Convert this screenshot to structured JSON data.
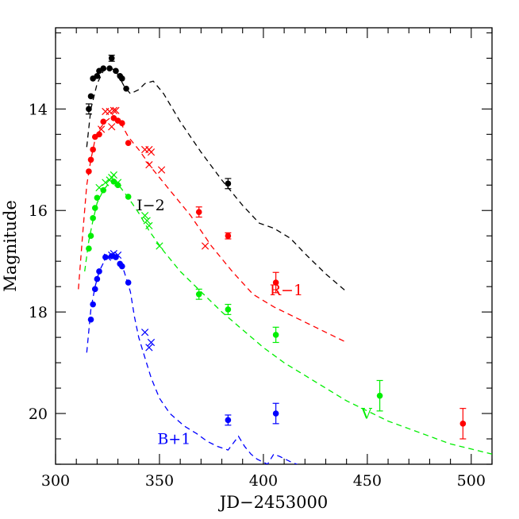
{
  "chart_data": {
    "type": "scatter",
    "title": "",
    "xlabel": "JD−2453000",
    "ylabel": "Magnitude",
    "xlim": [
      300,
      510
    ],
    "ylim": [
      21,
      12.4
    ],
    "y_inverted": true,
    "grid": false,
    "x_ticks": [
      300,
      350,
      400,
      450,
      500
    ],
    "y_ticks": [
      14,
      16,
      18,
      20
    ],
    "series": [
      {
        "name": "I−2",
        "color": "#000000",
        "label_pos": {
          "x": 339,
          "y": 16.0
        },
        "dots": [
          [
            316,
            14.0
          ],
          [
            317,
            13.75
          ],
          [
            318,
            13.4
          ],
          [
            320,
            13.35
          ],
          [
            321,
            13.25
          ],
          [
            323,
            13.2
          ],
          [
            326,
            13.2
          ],
          [
            327,
            13.0
          ],
          [
            329,
            13.25
          ],
          [
            331,
            13.35
          ],
          [
            332,
            13.4
          ],
          [
            334,
            13.6
          ],
          [
            383,
            15.47
          ]
        ],
        "dot_err": [
          [
            316,
            0.1
          ],
          [
            383,
            0.1
          ],
          [
            327,
            0.06
          ]
        ],
        "crosses": [],
        "model": [
          [
            315,
            14.75
          ],
          [
            317,
            14.0
          ],
          [
            320,
            13.5
          ],
          [
            323,
            13.25
          ],
          [
            326,
            13.18
          ],
          [
            329,
            13.25
          ],
          [
            333,
            13.55
          ],
          [
            336,
            13.7
          ],
          [
            340,
            13.62
          ],
          [
            343,
            13.5
          ],
          [
            347,
            13.45
          ],
          [
            352,
            13.7
          ],
          [
            360,
            14.25
          ],
          [
            370,
            14.85
          ],
          [
            380,
            15.4
          ],
          [
            390,
            15.9
          ],
          [
            398,
            16.25
          ],
          [
            405,
            16.35
          ],
          [
            413,
            16.55
          ],
          [
            420,
            16.85
          ],
          [
            430,
            17.25
          ],
          [
            440,
            17.6
          ]
        ]
      },
      {
        "name": "R−1",
        "color": "#ff0000",
        "label_pos": {
          "x": 403,
          "y": 17.67
        },
        "dots": [
          [
            316,
            15.23
          ],
          [
            317,
            15.0
          ],
          [
            318,
            14.8
          ],
          [
            319,
            14.55
          ],
          [
            321,
            14.5
          ],
          [
            323,
            14.25
          ],
          [
            328,
            14.18
          ],
          [
            330,
            14.23
          ],
          [
            332,
            14.28
          ],
          [
            335,
            14.67
          ],
          [
            369,
            16.03
          ],
          [
            383,
            16.5
          ],
          [
            406,
            17.42
          ],
          [
            496,
            20.2
          ]
        ],
        "dot_err": [
          [
            369,
            0.1
          ],
          [
            383,
            0.06
          ],
          [
            406,
            0.2
          ],
          [
            496,
            0.3
          ]
        ],
        "crosses": [
          [
            322,
            14.4
          ],
          [
            324,
            14.05
          ],
          [
            326,
            14.05
          ],
          [
            327,
            14.35
          ],
          [
            328,
            14.03
          ],
          [
            329,
            14.03
          ],
          [
            343,
            14.8
          ],
          [
            345,
            14.8
          ],
          [
            346,
            14.85
          ],
          [
            345,
            15.1
          ],
          [
            351,
            15.2
          ],
          [
            372,
            16.7
          ]
        ],
        "model": [
          [
            311,
            17.55
          ],
          [
            313,
            16.5
          ],
          [
            315,
            15.5
          ],
          [
            317,
            15.0
          ],
          [
            319,
            14.6
          ],
          [
            321,
            14.4
          ],
          [
            324,
            14.25
          ],
          [
            327,
            14.15
          ],
          [
            331,
            14.25
          ],
          [
            335,
            14.55
          ],
          [
            340,
            14.8
          ],
          [
            347,
            15.2
          ],
          [
            355,
            15.6
          ],
          [
            365,
            16.1
          ],
          [
            375,
            16.7
          ],
          [
            385,
            17.2
          ],
          [
            395,
            17.65
          ],
          [
            405,
            17.9
          ],
          [
            415,
            18.1
          ],
          [
            425,
            18.3
          ],
          [
            440,
            18.6
          ]
        ]
      },
      {
        "name": "V",
        "color": "#00ee00",
        "label_pos": {
          "x": 447,
          "y": 20.1
        },
        "dots": [
          [
            316,
            16.75
          ],
          [
            317,
            16.5
          ],
          [
            318,
            16.15
          ],
          [
            319,
            15.95
          ],
          [
            320,
            15.75
          ],
          [
            323,
            15.6
          ],
          [
            328,
            15.43
          ],
          [
            330,
            15.5
          ],
          [
            335,
            15.73
          ],
          [
            369,
            17.65
          ],
          [
            383,
            17.95
          ],
          [
            406,
            18.45
          ],
          [
            456,
            19.65
          ]
        ],
        "dot_err": [
          [
            369,
            0.1
          ],
          [
            383,
            0.1
          ],
          [
            406,
            0.15
          ],
          [
            456,
            0.3
          ]
        ],
        "crosses": [
          [
            321,
            15.55
          ],
          [
            324,
            15.45
          ],
          [
            326,
            15.4
          ],
          [
            327,
            15.35
          ],
          [
            328,
            15.3
          ],
          [
            330,
            15.45
          ],
          [
            343,
            16.1
          ],
          [
            344,
            16.2
          ],
          [
            345,
            16.3
          ],
          [
            350,
            16.7
          ]
        ],
        "model": [
          [
            314,
            17.2
          ],
          [
            316,
            16.6
          ],
          [
            318,
            16.2
          ],
          [
            320,
            15.85
          ],
          [
            323,
            15.6
          ],
          [
            326,
            15.45
          ],
          [
            330,
            15.48
          ],
          [
            335,
            15.75
          ],
          [
            340,
            16.05
          ],
          [
            345,
            16.4
          ],
          [
            352,
            16.8
          ],
          [
            360,
            17.2
          ],
          [
            370,
            17.6
          ],
          [
            380,
            18.0
          ],
          [
            390,
            18.35
          ],
          [
            400,
            18.7
          ],
          [
            410,
            19.0
          ],
          [
            420,
            19.25
          ],
          [
            430,
            19.5
          ],
          [
            440,
            19.75
          ],
          [
            450,
            19.95
          ],
          [
            460,
            20.15
          ],
          [
            470,
            20.3
          ],
          [
            480,
            20.45
          ],
          [
            490,
            20.6
          ],
          [
            500,
            20.7
          ],
          [
            510,
            20.8
          ]
        ]
      },
      {
        "name": "B+1",
        "color": "#0000ff",
        "label_pos": {
          "x": 349,
          "y": 20.6
        },
        "dots": [
          [
            317,
            18.15
          ],
          [
            318,
            17.85
          ],
          [
            319,
            17.55
          ],
          [
            320,
            17.35
          ],
          [
            321,
            17.2
          ],
          [
            324,
            16.92
          ],
          [
            327,
            16.9
          ],
          [
            329,
            16.92
          ],
          [
            331,
            17.05
          ],
          [
            332,
            17.1
          ],
          [
            335,
            17.42
          ],
          [
            383,
            20.13
          ],
          [
            406,
            20.0
          ]
        ],
        "dot_err": [
          [
            383,
            0.1
          ],
          [
            406,
            0.2
          ]
        ],
        "crosses": [
          [
            325,
            16.92
          ],
          [
            327,
            16.88
          ],
          [
            328,
            16.85
          ],
          [
            330,
            16.88
          ],
          [
            343,
            18.4
          ],
          [
            345,
            18.7
          ],
          [
            346,
            18.6
          ]
        ],
        "model": [
          [
            315,
            18.8
          ],
          [
            317,
            17.95
          ],
          [
            319,
            17.5
          ],
          [
            321,
            17.2
          ],
          [
            324,
            16.95
          ],
          [
            327,
            16.88
          ],
          [
            330,
            16.95
          ],
          [
            333,
            17.2
          ],
          [
            336,
            17.6
          ],
          [
            338,
            18.1
          ],
          [
            340,
            18.5
          ],
          [
            343,
            18.9
          ],
          [
            346,
            19.3
          ],
          [
            350,
            19.7
          ],
          [
            355,
            20.0
          ],
          [
            362,
            20.25
          ],
          [
            368,
            20.4
          ],
          [
            373,
            20.55
          ],
          [
            378,
            20.65
          ],
          [
            383,
            20.72
          ],
          [
            388,
            20.45
          ],
          [
            391,
            20.65
          ],
          [
            394,
            20.8
          ],
          [
            397,
            20.9
          ],
          [
            402,
            21.0
          ],
          [
            405,
            20.8
          ],
          [
            408,
            20.85
          ],
          [
            413,
            20.95
          ],
          [
            419,
            21.05
          ]
        ]
      }
    ]
  }
}
